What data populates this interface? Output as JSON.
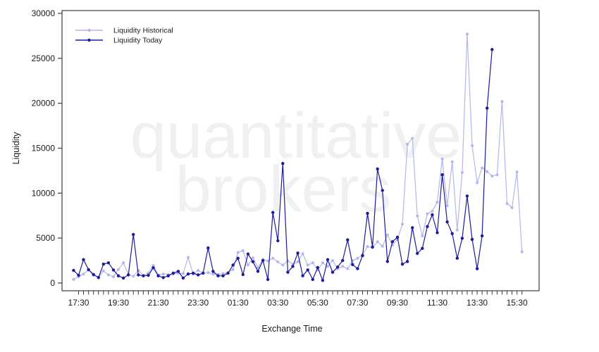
{
  "chart_data": {
    "type": "line",
    "title": "",
    "xlabel": "Exchange Time",
    "ylabel": "Liquidity",
    "ylim": [
      0,
      30000
    ],
    "yticks": [
      0,
      5000,
      10000,
      15000,
      20000,
      25000,
      30000
    ],
    "grid": false,
    "legend_position": "top-left",
    "xtick_minor_every_minutes": 15,
    "xtick_major_labels": [
      "17:30",
      "19:30",
      "21:30",
      "23:30",
      "01:30",
      "03:30",
      "05:30",
      "07:30",
      "09:30",
      "11:30",
      "13:30",
      "15:30"
    ],
    "x": [
      "17:15",
      "17:30",
      "17:45",
      "18:00",
      "18:15",
      "18:30",
      "18:45",
      "19:00",
      "19:15",
      "19:30",
      "19:45",
      "20:00",
      "20:15",
      "20:30",
      "20:45",
      "21:00",
      "21:15",
      "21:30",
      "21:45",
      "22:00",
      "22:15",
      "22:30",
      "22:45",
      "23:00",
      "23:15",
      "23:30",
      "23:45",
      "00:00",
      "00:15",
      "00:30",
      "00:45",
      "01:00",
      "01:15",
      "01:30",
      "01:45",
      "02:00",
      "02:15",
      "02:30",
      "02:45",
      "03:00",
      "03:15",
      "03:30",
      "03:45",
      "04:00",
      "04:15",
      "04:30",
      "04:45",
      "05:00",
      "05:15",
      "05:30",
      "05:45",
      "06:00",
      "06:15",
      "06:30",
      "06:45",
      "07:00",
      "07:15",
      "07:30",
      "07:45",
      "08:00",
      "08:15",
      "08:30",
      "08:45",
      "09:00",
      "09:15",
      "09:30",
      "09:45",
      "10:00",
      "10:15",
      "10:30",
      "10:45",
      "11:00",
      "11:15",
      "11:30",
      "11:45",
      "12:00",
      "12:15",
      "12:30",
      "12:45",
      "13:00",
      "13:15",
      "13:30",
      "13:45",
      "14:00",
      "14:15",
      "14:30",
      "14:45",
      "15:00",
      "15:15",
      "15:30",
      "15:45"
    ],
    "series": [
      {
        "name": "Liquidity Historical",
        "color": "#b2b6ed",
        "values": [
          400,
          700,
          1000,
          1450,
          850,
          650,
          1350,
          900,
          700,
          1500,
          2250,
          950,
          750,
          1400,
          850,
          1100,
          1950,
          900,
          1000,
          950,
          1000,
          1100,
          1050,
          2850,
          1000,
          1400,
          1100,
          1150,
          1000,
          950,
          1050,
          1150,
          1500,
          3400,
          3600,
          2000,
          2800,
          1700,
          2650,
          2450,
          2750,
          2350,
          2000,
          2450,
          2100,
          2350,
          3250,
          2000,
          2250,
          1450,
          2250,
          1850,
          2500,
          1600,
          1850,
          1600,
          2500,
          2750,
          3150,
          4050,
          3950,
          4600,
          4100,
          5350,
          4200,
          4850,
          6550,
          15450,
          16100,
          7460,
          5240,
          7700,
          8000,
          9000,
          13800,
          8600,
          13500,
          5900,
          12300,
          27700,
          15280,
          11160,
          12810,
          12400,
          11900,
          12030,
          20190,
          8840,
          8370,
          12360,
          3470
        ]
      },
      {
        "name": "Liquidity Today",
        "color": "#1b1b9b",
        "values": [
          1400,
          850,
          2600,
          1500,
          950,
          600,
          2100,
          2250,
          1450,
          800,
          550,
          900,
          5400,
          900,
          800,
          850,
          1700,
          800,
          600,
          800,
          1100,
          1300,
          550,
          1000,
          1100,
          900,
          1100,
          3900,
          1300,
          800,
          800,
          1100,
          2000,
          2760,
          940,
          3230,
          2370,
          1300,
          2500,
          400,
          7850,
          4700,
          13300,
          1200,
          1850,
          3340,
          810,
          1460,
          400,
          1720,
          290,
          2600,
          1200,
          1780,
          2500,
          4800,
          2050,
          1600,
          3050,
          7750,
          4000,
          12700,
          10300,
          2400,
          4600,
          5100,
          2100,
          2400,
          6160,
          3290,
          3855,
          6285,
          7590,
          5600,
          12050,
          6800,
          5500,
          2760,
          4980,
          9680,
          4850,
          1590,
          5240,
          19460,
          25980,
          null,
          null,
          null,
          null,
          null,
          null
        ]
      }
    ],
    "watermark": {
      "line1": "quantitative",
      "line2": "brokers",
      "color": "#f0f0f2"
    }
  }
}
